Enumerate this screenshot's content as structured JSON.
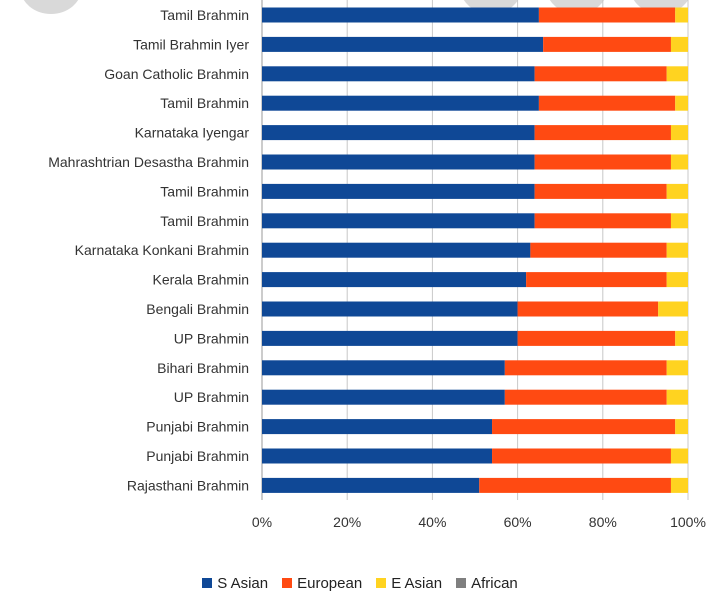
{
  "chart_data": {
    "type": "bar",
    "orientation": "horizontal",
    "stacked": true,
    "percent": true,
    "categories": [
      "Tamil Brahmin",
      "Tamil Brahmin Iyer",
      "Goan Catholic Brahmin",
      "Tamil Brahmin",
      "Karnataka Iyengar",
      "Mahrashtrian Desastha Brahmin",
      "Tamil Brahmin",
      "Tamil Brahmin",
      "Karnataka Konkani Brahmin",
      "Kerala Brahmin",
      "Bengali Brahmin",
      "UP Brahmin",
      "Bihari Brahmin",
      "UP Brahmin",
      "Punjabi Brahmin",
      "Punjabi Brahmin",
      "Rajasthani Brahmin"
    ],
    "series": [
      {
        "name": "S Asian",
        "color": "#0f4896",
        "values": [
          65,
          66,
          64,
          65,
          64,
          64,
          64,
          64,
          63,
          62,
          60,
          60,
          57,
          57,
          54,
          54,
          51
        ]
      },
      {
        "name": "European",
        "color": "#ff4a12",
        "values": [
          32,
          30,
          31,
          32,
          32,
          32,
          31,
          32,
          32,
          33,
          33,
          37,
          38,
          38,
          43,
          42,
          45
        ]
      },
      {
        "name": "E Asian",
        "color": "#ffd320",
        "values": [
          3,
          4,
          5,
          3,
          4,
          4,
          5,
          4,
          5,
          5,
          7,
          3,
          5,
          5,
          3,
          4,
          4
        ]
      },
      {
        "name": "African",
        "color": "#7f7f7f",
        "values": [
          0,
          0,
          0,
          0,
          0,
          0,
          0,
          0,
          0,
          0,
          0,
          0,
          0,
          0,
          0,
          0,
          0
        ]
      }
    ],
    "x_ticks": [
      "0%",
      "20%",
      "40%",
      "60%",
      "80%",
      "100%"
    ],
    "xlim": [
      0,
      100
    ],
    "grid": "vertical",
    "legend_position": "bottom"
  }
}
